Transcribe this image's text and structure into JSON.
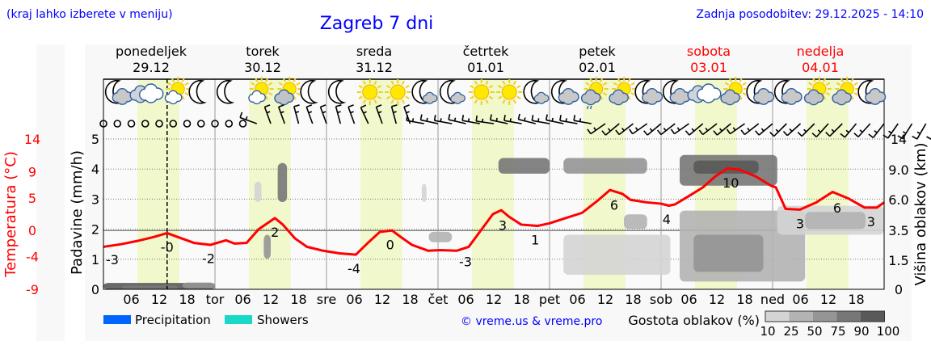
{
  "header": {
    "hint": "(kraj lahko izberete v meniju)",
    "title": "Zagreb 7 dni",
    "updated": "Zadnja posodobitev: 29.12.2025 - 14:10"
  },
  "days": [
    {
      "name": "ponedeljek",
      "date": "29.12",
      "weekend": false
    },
    {
      "name": "torek",
      "date": "30.12",
      "weekend": false
    },
    {
      "name": "sreda",
      "date": "31.12",
      "weekend": false
    },
    {
      "name": "četrtek",
      "date": "01.01",
      "weekend": false
    },
    {
      "name": "petek",
      "date": "02.01",
      "weekend": false
    },
    {
      "name": "sobota",
      "date": "03.01",
      "weekend": true
    },
    {
      "name": "nedelja",
      "date": "04.01",
      "weekend": true
    }
  ],
  "weather_icons": [
    "moon-cloud",
    "cloud",
    "sun-cloud",
    "moon",
    "moon",
    "sun-cloud",
    "sun-darkcloud",
    "moon",
    "moon",
    "sun",
    "sun",
    "moon-smallcloud",
    "moon-smallcloud",
    "sun",
    "sun",
    "moon-smallcloud",
    "moon-cloud",
    "sun-raincloud",
    "sun-darkcloud",
    "moon-cloud",
    "moon-cloud",
    "cloud",
    "sun-darkcloud",
    "moon-cloud",
    "moon-cloud",
    "sun-darkcloud",
    "sun-darkcloud",
    "moon-cloud"
  ],
  "wind": {
    "calm_count": 11,
    "directions_deg": [
      290,
      340,
      340,
      345,
      340,
      340,
      345,
      340,
      335,
      340,
      345,
      340,
      280,
      282,
      280,
      283,
      280,
      278,
      282,
      280,
      284,
      280,
      282,
      280,
      280,
      235,
      230,
      232,
      235,
      230,
      232,
      235,
      230,
      232,
      230,
      235,
      232,
      230,
      225,
      228,
      225,
      222,
      225,
      220,
      222,
      218,
      215,
      212,
      210,
      208,
      205
    ]
  },
  "chart_data": {
    "type": "line",
    "xlim": [
      0,
      168
    ],
    "x_tick_labels": [
      "06",
      "12",
      "18",
      "tor",
      "06",
      "12",
      "18",
      "sre",
      "06",
      "12",
      "18",
      "čet",
      "06",
      "12",
      "18",
      "pet",
      "06",
      "12",
      "18",
      "sob",
      "06",
      "12",
      "18",
      "ned",
      "06",
      "12",
      "18"
    ],
    "now_hour": 13.7,
    "daylight_hours": [
      7.3,
      16.3
    ],
    "temperature": {
      "axis_label": "Temperatura (°C)",
      "ticks": [
        14,
        9,
        5,
        0,
        -4,
        -9
      ],
      "ylim": [
        -9,
        14
      ],
      "color": "#ff0000",
      "x": [
        0,
        3.8,
        7.3,
        10.8,
        13.7,
        16,
        19.5,
        23,
        26.4,
        28.2,
        30.8,
        33.4,
        36.9,
        38.6,
        41.2,
        43.8,
        47.3,
        50.8,
        54.3,
        56.9,
        59.5,
        62.1,
        63.8,
        66.4,
        69.9,
        72.5,
        76,
        78.6,
        81.2,
        83.8,
        85.6,
        87.3,
        89.9,
        93.4,
        96,
        99.5,
        103,
        106.4,
        109,
        111.7,
        113.4,
        116.9,
        120,
        121.7,
        123,
        125.6,
        129,
        131.7,
        134.3,
        136.9,
        140.3,
        143.8,
        144.7,
        146.8,
        149.9,
        153.4,
        156.9,
        160.3,
        163.8,
        166.4,
        168
      ],
      "y": [
        -2.5,
        -2.1,
        -1.6,
        -1.0,
        -0.4,
        -1.0,
        -1.9,
        -2.2,
        -1.5,
        -2.0,
        -1.9,
        0.2,
        1.9,
        0.9,
        -1.2,
        -2.5,
        -3.1,
        -3.5,
        -3.7,
        -1.9,
        -0.2,
        0,
        -0.9,
        -2.2,
        -3.1,
        -3.0,
        -3.1,
        -2.5,
        0,
        2.5,
        3.1,
        2.1,
        0.9,
        0.7,
        1.1,
        1.9,
        2.7,
        4.6,
        6.2,
        5.6,
        4.7,
        4.3,
        4.1,
        3.8,
        4.0,
        5.1,
        6.6,
        8.3,
        9.5,
        9.3,
        8.3,
        6.8,
        6.6,
        3.3,
        3.2,
        4.3,
        5.9,
        4.9,
        3.5,
        3.5,
        4.3
      ],
      "labels": [
        {
          "h": 1.9,
          "text": "-3"
        },
        {
          "h": 13.7,
          "text": "-0"
        },
        {
          "h": 22.6,
          "text": "-2"
        },
        {
          "h": 36.9,
          "text": "2"
        },
        {
          "h": 53.9,
          "text": "-4"
        },
        {
          "h": 61.7,
          "text": "0"
        },
        {
          "h": 77.9,
          "text": "-3"
        },
        {
          "h": 85.9,
          "text": "3"
        },
        {
          "h": 92.9,
          "text": "1"
        },
        {
          "h": 109.9,
          "text": "6"
        },
        {
          "h": 121.2,
          "text": "4"
        },
        {
          "h": 135,
          "text": "10"
        },
        {
          "h": 149.9,
          "text": "3"
        },
        {
          "h": 157.9,
          "text": "6"
        },
        {
          "h": 165.2,
          "text": "3"
        }
      ]
    },
    "precipitation": {
      "axis_label": "Padavine (mm/h)",
      "ticks": [
        0,
        1,
        2,
        3,
        4,
        5
      ],
      "ylim": [
        0,
        5
      ],
      "grid": true
    },
    "cloud_height": {
      "axis_label": "Višina oblakov (km)",
      "ticks": [
        0,
        1.5,
        3.5,
        6.0,
        9.0,
        14
      ],
      "tick_labels": [
        "0",
        "1.5",
        "3.5",
        "6.0",
        "9.0",
        "14"
      ],
      "blobs": [
        {
          "h0": 0,
          "h1": 24,
          "km0": 0,
          "km1": 0.33,
          "d": 90
        },
        {
          "h0": 4,
          "h1": 16,
          "km0": 0,
          "km1": 0.2,
          "d": 75
        },
        {
          "h0": 17,
          "h1": 24,
          "km0": 0.05,
          "km1": 0.35,
          "d": 50
        },
        {
          "h0": 37.5,
          "h1": 39.5,
          "km0": 5.8,
          "km1": 10.1,
          "d": 75
        },
        {
          "h0": 32.5,
          "h1": 34,
          "km0": 5.8,
          "km1": 7.8,
          "d": 10
        },
        {
          "h0": 34.5,
          "h1": 36,
          "km0": 1.6,
          "km1": 3.2,
          "d": 50
        },
        {
          "h0": 68.5,
          "h1": 69.5,
          "km0": 5.8,
          "km1": 7.6,
          "d": 10
        },
        {
          "h0": 70,
          "h1": 75,
          "km0": 2.7,
          "km1": 3.4,
          "d": 25
        },
        {
          "h0": 85,
          "h1": 96,
          "km0": 8.6,
          "km1": 10.9,
          "d": 75
        },
        {
          "h0": 99,
          "h1": 117,
          "km0": 8.6,
          "km1": 10.9,
          "d": 50
        },
        {
          "h0": 99,
          "h1": 122,
          "km0": 0.75,
          "km1": 3.2,
          "d": 10
        },
        {
          "h0": 112,
          "h1": 117,
          "km0": 3.6,
          "km1": 4.8,
          "d": 25
        },
        {
          "h0": 124,
          "h1": 145,
          "km0": 7.4,
          "km1": 11.4,
          "d": 75
        },
        {
          "h0": 127,
          "h1": 141,
          "km0": 8.6,
          "km1": 10.5,
          "d": 90
        },
        {
          "h0": 124,
          "h1": 151,
          "km0": 0.4,
          "km1": 5.1,
          "d": 25
        },
        {
          "h0": 127,
          "h1": 142,
          "km0": 0.9,
          "km1": 3.2,
          "d": 50
        },
        {
          "h0": 145,
          "h1": 168,
          "km0": 3.2,
          "km1": 5.5,
          "d": 10
        },
        {
          "h0": 151,
          "h1": 164,
          "km0": 3.6,
          "km1": 5.0,
          "d": 25
        }
      ]
    },
    "legend": {
      "precipitation": {
        "label": "Precipitation",
        "color": "#0064ff"
      },
      "showers": {
        "label": "Showers",
        "color": "#18d8c8"
      },
      "density_title": "Gostota oblakov (%)",
      "density_levels": [
        "10",
        "25",
        "50",
        "75",
        "90",
        "100"
      ],
      "density_colors": [
        "#d4d4d4",
        "#b3b3b3",
        "#959595",
        "#777777",
        "#595959"
      ]
    },
    "credit": "© vreme.us & vreme.pro"
  },
  "colors": {
    "title": "#0000ff",
    "weekend": "#ff0000",
    "daylight": "#f0f8cc"
  }
}
